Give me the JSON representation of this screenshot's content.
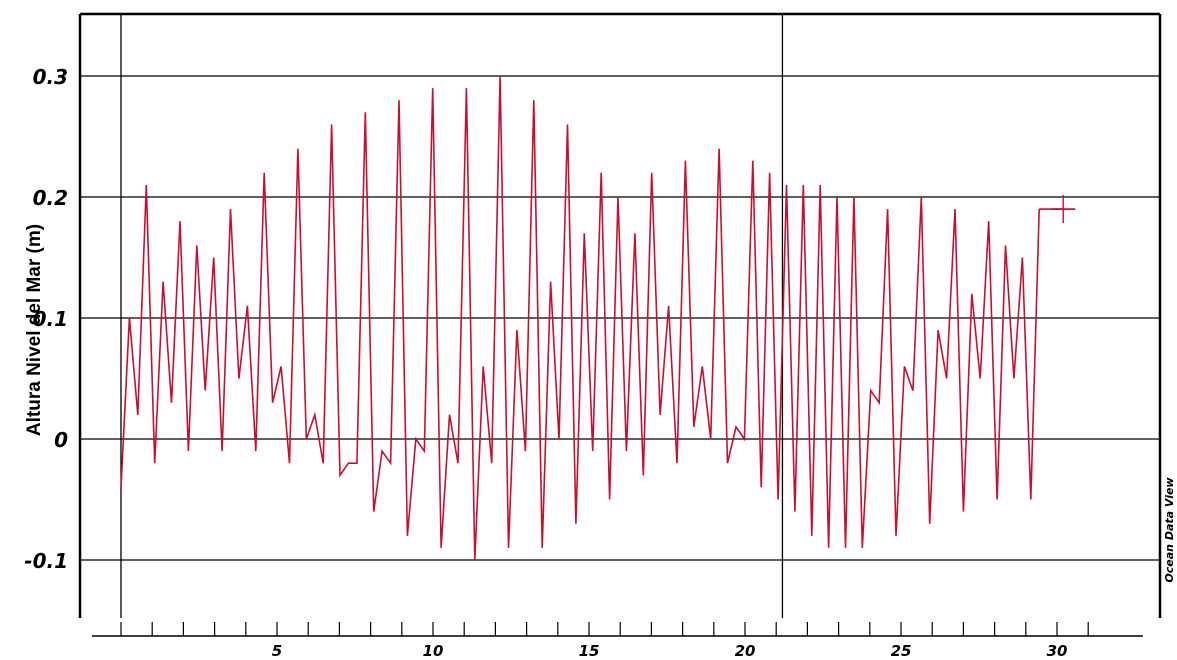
{
  "chart_data": {
    "type": "line",
    "ylabel": "Altura Nivel del Mar (m)",
    "xlabel": "",
    "watermark": "Ocean Data View",
    "xlim": [
      0,
      31.5
    ],
    "ylim": [
      -0.147,
      0.35
    ],
    "grid": true,
    "x_ticks": [
      5,
      10,
      15,
      20,
      25,
      30
    ],
    "x_minor_ticks": [
      0,
      1,
      2,
      3,
      4,
      5,
      6,
      7,
      8,
      9,
      10,
      11,
      12,
      13,
      14,
      15,
      16,
      17,
      18,
      19,
      20,
      21,
      22,
      23,
      24,
      25,
      26,
      27,
      28,
      29,
      30,
      31
    ],
    "y_ticks": [
      -0.1,
      0,
      0.1,
      0.2,
      0.3
    ],
    "y_tick_labels": [
      "-0.1",
      "0",
      "0.1",
      "0.2",
      "0.3"
    ],
    "vertical_gridlines_x": [
      0,
      21.2
    ],
    "line_color": "#c8102e",
    "marker_point": {
      "x": 30.2,
      "y": 0.19
    },
    "series": [
      {
        "values": [
          {
            "x": 0.0,
            "y": -0.04
          },
          {
            "x": 0.27,
            "y": 0.1
          },
          {
            "x": 0.54,
            "y": 0.02
          },
          {
            "x": 0.81,
            "y": 0.21
          },
          {
            "x": 1.08,
            "y": -0.02
          },
          {
            "x": 1.35,
            "y": 0.13
          },
          {
            "x": 1.62,
            "y": 0.03
          },
          {
            "x": 1.89,
            "y": 0.18
          },
          {
            "x": 2.16,
            "y": -0.01
          },
          {
            "x": 2.43,
            "y": 0.16
          },
          {
            "x": 2.7,
            "y": 0.04
          },
          {
            "x": 2.97,
            "y": 0.15
          },
          {
            "x": 3.24,
            "y": -0.01
          },
          {
            "x": 3.51,
            "y": 0.19
          },
          {
            "x": 3.78,
            "y": 0.05
          },
          {
            "x": 4.05,
            "y": 0.11
          },
          {
            "x": 4.32,
            "y": -0.01
          },
          {
            "x": 4.59,
            "y": 0.22
          },
          {
            "x": 4.86,
            "y": 0.03
          },
          {
            "x": 5.13,
            "y": 0.06
          },
          {
            "x": 5.4,
            "y": -0.02
          },
          {
            "x": 5.67,
            "y": 0.24
          },
          {
            "x": 5.94,
            "y": 0.0
          },
          {
            "x": 6.21,
            "y": 0.02
          },
          {
            "x": 6.48,
            "y": -0.02
          },
          {
            "x": 6.75,
            "y": 0.26
          },
          {
            "x": 7.02,
            "y": -0.03
          },
          {
            "x": 7.29,
            "y": -0.02
          },
          {
            "x": 7.56,
            "y": -0.02
          },
          {
            "x": 7.83,
            "y": 0.27
          },
          {
            "x": 8.1,
            "y": -0.06
          },
          {
            "x": 8.37,
            "y": -0.01
          },
          {
            "x": 8.64,
            "y": -0.02
          },
          {
            "x": 8.91,
            "y": 0.28
          },
          {
            "x": 9.18,
            "y": -0.08
          },
          {
            "x": 9.45,
            "y": 0.0
          },
          {
            "x": 9.72,
            "y": -0.01
          },
          {
            "x": 9.99,
            "y": 0.29
          },
          {
            "x": 10.26,
            "y": -0.09
          },
          {
            "x": 10.53,
            "y": 0.02
          },
          {
            "x": 10.8,
            "y": -0.02
          },
          {
            "x": 11.07,
            "y": 0.29
          },
          {
            "x": 11.34,
            "y": -0.1
          },
          {
            "x": 11.61,
            "y": 0.06
          },
          {
            "x": 11.88,
            "y": -0.02
          },
          {
            "x": 12.15,
            "y": 0.3
          },
          {
            "x": 12.42,
            "y": -0.09
          },
          {
            "x": 12.69,
            "y": 0.09
          },
          {
            "x": 12.96,
            "y": -0.01
          },
          {
            "x": 13.23,
            "y": 0.28
          },
          {
            "x": 13.5,
            "y": -0.09
          },
          {
            "x": 13.77,
            "y": 0.13
          },
          {
            "x": 14.04,
            "y": 0.0
          },
          {
            "x": 14.31,
            "y": 0.26
          },
          {
            "x": 14.58,
            "y": -0.07
          },
          {
            "x": 14.85,
            "y": 0.17
          },
          {
            "x": 15.12,
            "y": -0.01
          },
          {
            "x": 15.39,
            "y": 0.22
          },
          {
            "x": 15.66,
            "y": -0.05
          },
          {
            "x": 15.93,
            "y": 0.2
          },
          {
            "x": 16.2,
            "y": -0.01
          },
          {
            "x": 16.47,
            "y": 0.17
          },
          {
            "x": 16.74,
            "y": -0.03
          },
          {
            "x": 17.01,
            "y": 0.22
          },
          {
            "x": 17.28,
            "y": 0.02
          },
          {
            "x": 17.55,
            "y": 0.11
          },
          {
            "x": 17.82,
            "y": -0.02
          },
          {
            "x": 18.09,
            "y": 0.23
          },
          {
            "x": 18.36,
            "y": 0.01
          },
          {
            "x": 18.63,
            "y": 0.06
          },
          {
            "x": 18.9,
            "y": 0.0
          },
          {
            "x": 19.17,
            "y": 0.24
          },
          {
            "x": 19.44,
            "y": -0.02
          },
          {
            "x": 19.71,
            "y": 0.01
          },
          {
            "x": 19.98,
            "y": 0.0
          },
          {
            "x": 20.25,
            "y": 0.23
          },
          {
            "x": 20.52,
            "y": -0.04
          },
          {
            "x": 20.79,
            "y": 0.22
          },
          {
            "x": 21.06,
            "y": -0.05
          },
          {
            "x": 21.33,
            "y": 0.21
          },
          {
            "x": 21.6,
            "y": -0.06
          },
          {
            "x": 21.87,
            "y": 0.21
          },
          {
            "x": 22.14,
            "y": -0.08
          },
          {
            "x": 22.41,
            "y": 0.21
          },
          {
            "x": 22.68,
            "y": -0.09
          },
          {
            "x": 22.95,
            "y": 0.2
          },
          {
            "x": 23.22,
            "y": -0.09
          },
          {
            "x": 23.49,
            "y": 0.2
          },
          {
            "x": 23.76,
            "y": -0.09
          },
          {
            "x": 24.03,
            "y": 0.04
          },
          {
            "x": 24.3,
            "y": 0.03
          },
          {
            "x": 24.57,
            "y": 0.19
          },
          {
            "x": 24.84,
            "y": -0.08
          },
          {
            "x": 25.11,
            "y": 0.06
          },
          {
            "x": 25.38,
            "y": 0.04
          },
          {
            "x": 25.65,
            "y": 0.2
          },
          {
            "x": 25.92,
            "y": -0.07
          },
          {
            "x": 26.19,
            "y": 0.09
          },
          {
            "x": 26.46,
            "y": 0.05
          },
          {
            "x": 26.73,
            "y": 0.19
          },
          {
            "x": 27.0,
            "y": -0.06
          },
          {
            "x": 27.27,
            "y": 0.12
          },
          {
            "x": 27.54,
            "y": 0.05
          },
          {
            "x": 27.81,
            "y": 0.18
          },
          {
            "x": 28.08,
            "y": -0.05
          },
          {
            "x": 28.35,
            "y": 0.16
          },
          {
            "x": 28.62,
            "y": 0.05
          },
          {
            "x": 28.89,
            "y": 0.15
          },
          {
            "x": 29.16,
            "y": -0.05
          },
          {
            "x": 29.43,
            "y": 0.19
          }
        ]
      }
    ]
  }
}
